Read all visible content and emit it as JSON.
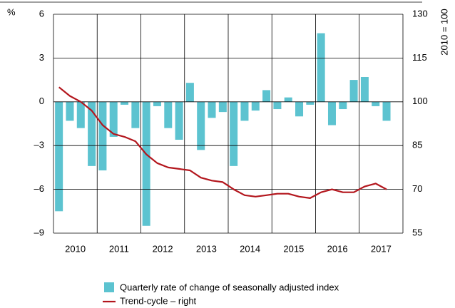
{
  "chart_data": {
    "type": "bar",
    "y_unit_label": "%",
    "y2_label": "2010 = 100",
    "x_labels": [
      "2010",
      "2011",
      "2012",
      "2013",
      "2014",
      "2015",
      "2016",
      "2017"
    ],
    "series": [
      {
        "name": "Quarterly rate of change of seasonally adjusted index",
        "color": "#5cc3d0",
        "type": "bar",
        "values": [
          -7.5,
          -1.3,
          -1.8,
          -4.4,
          -4.7,
          -2.4,
          -0.2,
          -1.8,
          -8.5,
          -0.3,
          -1.8,
          -2.6,
          1.3,
          -3.3,
          -1.1,
          -0.7,
          -4.4,
          -1.3,
          -0.6,
          0.8,
          -0.5,
          0.3,
          -1.0,
          -0.2,
          4.7,
          -1.6,
          -0.5,
          1.5,
          1.7,
          -0.3,
          -1.3
        ]
      },
      {
        "name": "Trend-cycle – right",
        "color": "#b3161d",
        "type": "line",
        "axis": "y2",
        "values": [
          105,
          102,
          100,
          97,
          92,
          89,
          88,
          86.5,
          82,
          79,
          77.5,
          77,
          76.5,
          74,
          73,
          72.5,
          70,
          68,
          67.5,
          68,
          68.5,
          68.5,
          67.5,
          67,
          69,
          70,
          69,
          69,
          71,
          72,
          70
        ]
      }
    ],
    "ylim": [
      -9,
      6
    ],
    "yticks": [
      {
        "value": -9,
        "label": "–9"
      },
      {
        "value": -6,
        "label": "–6"
      },
      {
        "value": -3,
        "label": "–3"
      },
      0,
      3,
      6
    ],
    "y2lim": [
      55,
      130
    ],
    "y2ticks": [
      55,
      70,
      85,
      100,
      115,
      130
    ],
    "grid": true
  }
}
